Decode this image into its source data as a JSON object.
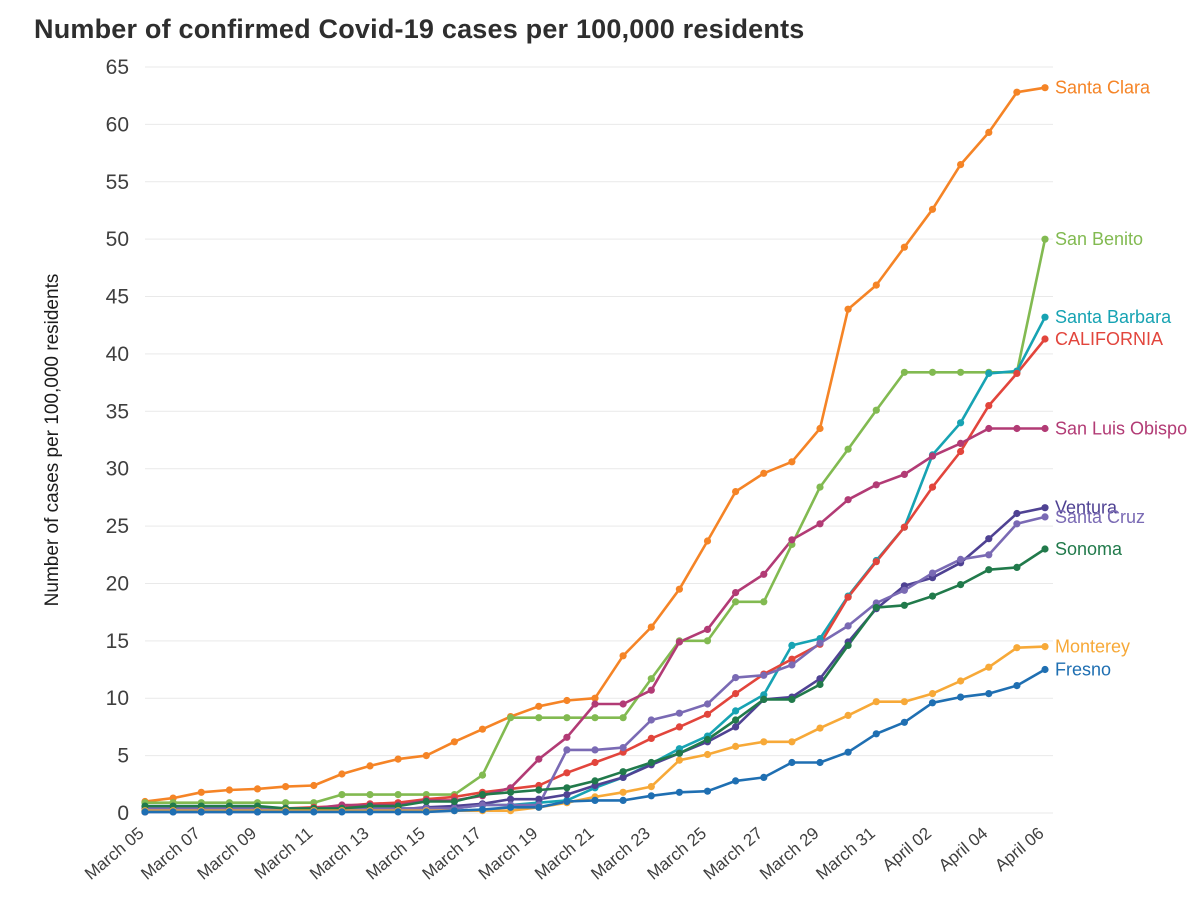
{
  "chart_data": {
    "type": "line",
    "title": "Number of confirmed Covid-19 cases per 100,000 residents",
    "ylabel": "Number of cases per 100,000 residents",
    "xlabel": "",
    "ylim": [
      0,
      65
    ],
    "ytick_step": 5,
    "grid": "horizontal",
    "grid_color": "#e9e9e9",
    "axis_text_color": "#3f3f3f",
    "legend_position": "right-end-labels",
    "x": [
      "March 05",
      "March 06",
      "March 07",
      "March 08",
      "March 09",
      "March 10",
      "March 11",
      "March 12",
      "March 13",
      "March 14",
      "March 15",
      "March 16",
      "March 17",
      "March 18",
      "March 19",
      "March 20",
      "March 21",
      "March 22",
      "March 23",
      "March 24",
      "March 25",
      "March 26",
      "March 27",
      "March 28",
      "March 29",
      "March 30",
      "March 31",
      "April 01",
      "April 02",
      "April 03",
      "April 04",
      "April 05",
      "April 06"
    ],
    "xticks": [
      "March 05",
      "March 07",
      "March 09",
      "March 11",
      "March 13",
      "March 15",
      "March 17",
      "March 19",
      "March 21",
      "March 23",
      "March 25",
      "March 27",
      "March 29",
      "March 31",
      "April 02",
      "April 04",
      "April 06"
    ],
    "series": [
      {
        "name": "Santa Clara",
        "color": "#f58426",
        "values": [
          1.0,
          1.3,
          1.8,
          2.0,
          2.1,
          2.3,
          2.4,
          3.4,
          4.1,
          4.7,
          5.0,
          6.2,
          7.3,
          8.4,
          9.3,
          9.8,
          10.0,
          13.7,
          16.2,
          19.5,
          23.7,
          28.0,
          29.6,
          30.6,
          33.5,
          43.9,
          46.0,
          49.3,
          52.6,
          56.5,
          59.3,
          62.8,
          63.2
        ]
      },
      {
        "name": "San Benito",
        "color": "#82ba51",
        "values": [
          0.9,
          0.9,
          0.9,
          0.9,
          0.9,
          0.9,
          0.9,
          1.6,
          1.6,
          1.6,
          1.6,
          1.6,
          3.3,
          8.3,
          8.3,
          8.3,
          8.3,
          8.3,
          11.7,
          15.0,
          15.0,
          18.4,
          18.4,
          23.4,
          28.4,
          31.7,
          35.1,
          38.4,
          38.4,
          38.4,
          38.4,
          38.4,
          50.0
        ]
      },
      {
        "name": "Santa Barbara",
        "color": "#17a3b3",
        "values": [
          0.2,
          0.2,
          0.4,
          0.4,
          0.4,
          0.4,
          0.4,
          0.4,
          0.4,
          0.4,
          0.4,
          0.4,
          0.7,
          0.7,
          0.9,
          1.1,
          2.2,
          3.1,
          4.3,
          5.6,
          6.7,
          8.9,
          10.3,
          14.6,
          15.2,
          18.9,
          22.0,
          24.9,
          31.2,
          34.0,
          38.3,
          38.5,
          43.2
        ]
      },
      {
        "name": "CALIFORNIA",
        "color": "#e2453c",
        "values": [
          0.1,
          0.2,
          0.2,
          0.3,
          0.3,
          0.4,
          0.5,
          0.6,
          0.8,
          0.9,
          1.2,
          1.4,
          1.8,
          2.1,
          2.4,
          3.5,
          4.4,
          5.3,
          6.5,
          7.5,
          8.6,
          10.4,
          12.1,
          13.4,
          14.7,
          18.8,
          21.9,
          24.9,
          28.4,
          31.5,
          35.5,
          38.3,
          41.3
        ]
      },
      {
        "name": "San Luis Obispo",
        "color": "#b23b75",
        "values": [
          0.4,
          0.4,
          0.4,
          0.4,
          0.4,
          0.4,
          0.4,
          0.7,
          0.7,
          0.7,
          1.1,
          1.1,
          1.5,
          2.2,
          4.7,
          6.6,
          9.5,
          9.5,
          10.7,
          14.9,
          16.0,
          19.2,
          20.8,
          23.8,
          25.2,
          27.3,
          28.6,
          29.5,
          31.1,
          32.2,
          33.5,
          33.5,
          33.5
        ]
      },
      {
        "name": "Ventura",
        "color": "#4f4293",
        "values": [
          0.1,
          0.1,
          0.1,
          0.1,
          0.1,
          0.3,
          0.3,
          0.3,
          0.3,
          0.3,
          0.5,
          0.6,
          0.8,
          1.2,
          1.2,
          1.6,
          2.4,
          3.1,
          4.2,
          5.2,
          6.2,
          7.5,
          9.9,
          10.1,
          11.7,
          14.9,
          17.8,
          19.8,
          20.5,
          21.8,
          23.9,
          26.1,
          26.6
        ]
      },
      {
        "name": "Santa Cruz",
        "color": "#7a6ab4",
        "values": [
          0.4,
          0.4,
          0.4,
          0.4,
          0.4,
          0.4,
          0.4,
          0.4,
          0.4,
          0.4,
          0.4,
          0.4,
          0.7,
          0.7,
          0.7,
          5.5,
          5.5,
          5.7,
          8.1,
          8.7,
          9.5,
          11.8,
          12.0,
          12.9,
          14.8,
          16.3,
          18.3,
          19.4,
          20.9,
          22.1,
          22.5,
          25.2,
          25.8
        ]
      },
      {
        "name": "Sonoma",
        "color": "#217a4b",
        "values": [
          0.6,
          0.6,
          0.6,
          0.6,
          0.6,
          0.4,
          0.4,
          0.4,
          0.6,
          0.6,
          1.0,
          1.0,
          1.6,
          1.8,
          2.0,
          2.2,
          2.8,
          3.6,
          4.4,
          5.2,
          6.4,
          8.1,
          9.9,
          9.9,
          11.2,
          14.6,
          17.9,
          18.1,
          18.9,
          19.9,
          21.2,
          21.4,
          23.0
        ]
      },
      {
        "name": "Monterey",
        "color": "#f7a938",
        "values": [
          0.2,
          0.2,
          0.2,
          0.2,
          0.2,
          0.2,
          0.2,
          0.2,
          0.2,
          0.2,
          0.2,
          0.2,
          0.2,
          0.2,
          0.5,
          0.9,
          1.4,
          1.8,
          2.3,
          4.6,
          5.1,
          5.8,
          6.2,
          6.2,
          7.4,
          8.5,
          9.7,
          9.7,
          10.4,
          11.5,
          12.7,
          14.4,
          14.5
        ]
      },
      {
        "name": "Fresno",
        "color": "#1f6fb2",
        "values": [
          0.1,
          0.1,
          0.1,
          0.1,
          0.1,
          0.1,
          0.1,
          0.1,
          0.1,
          0.1,
          0.1,
          0.2,
          0.3,
          0.5,
          0.5,
          1.0,
          1.1,
          1.1,
          1.5,
          1.8,
          1.9,
          2.8,
          3.1,
          4.4,
          4.4,
          5.3,
          6.9,
          7.9,
          9.6,
          10.1,
          10.4,
          11.1,
          12.5
        ]
      }
    ]
  }
}
